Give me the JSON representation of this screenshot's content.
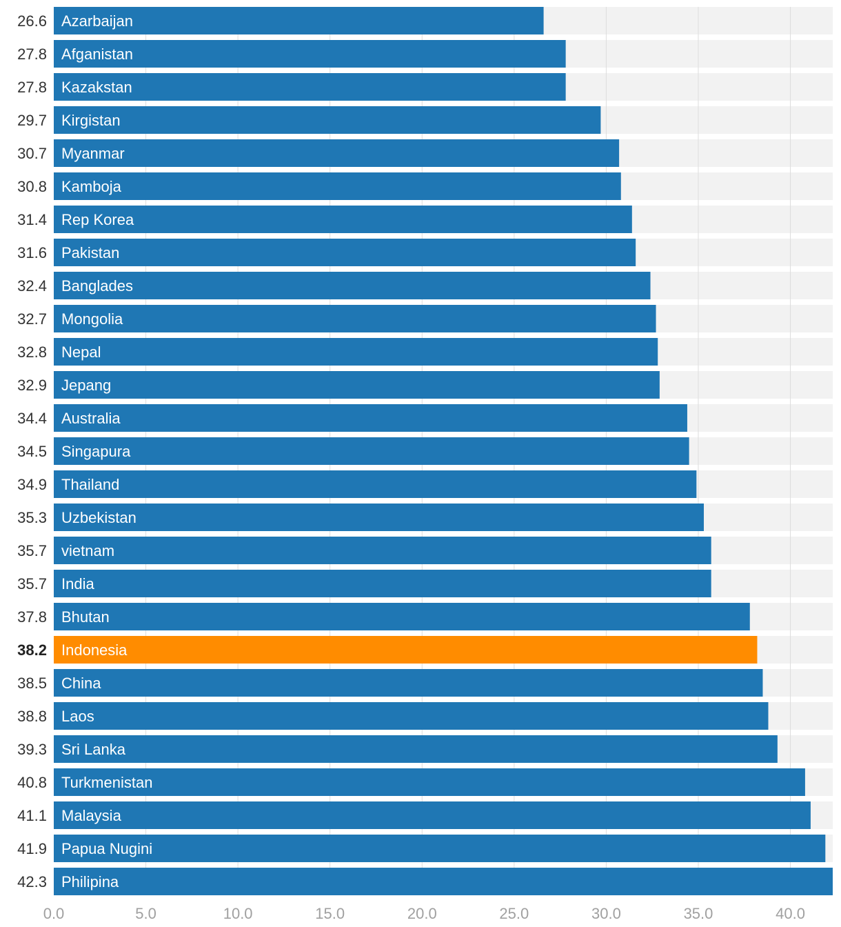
{
  "chart_data": {
    "type": "bar",
    "orientation": "horizontal",
    "categories": [
      "Azarbaijan",
      "Afganistan",
      "Kazakstan",
      "Kirgistan",
      "Myanmar",
      "Kamboja",
      "Rep Korea",
      "Pakistan",
      "Banglades",
      "Mongolia",
      "Nepal",
      "Jepang",
      "Australia",
      "Singapura",
      "Thailand",
      "Uzbekistan",
      "vietnam",
      "India",
      "Bhutan",
      "Indonesia",
      "China",
      "Laos",
      "Sri Lanka",
      "Turkmenistan",
      "Malaysia",
      "Papua Nugini",
      "Philipina"
    ],
    "values": [
      26.6,
      27.8,
      27.8,
      29.7,
      30.7,
      30.8,
      31.4,
      31.6,
      32.4,
      32.7,
      32.8,
      32.9,
      34.4,
      34.5,
      34.9,
      35.3,
      35.7,
      35.7,
      37.8,
      38.2,
      38.5,
      38.8,
      39.3,
      40.8,
      41.1,
      41.9,
      42.3
    ],
    "value_labels": [
      "26.6",
      "27.8",
      "27.8",
      "29.7",
      "30.7",
      "30.8",
      "31.4",
      "31.6",
      "32.4",
      "32.7",
      "32.8",
      "32.9",
      "34.4",
      "34.5",
      "34.9",
      "35.3",
      "35.7",
      "35.7",
      "37.8",
      "38.2",
      "38.5",
      "38.8",
      "39.3",
      "40.8",
      "41.1",
      "41.9",
      "42.3"
    ],
    "highlight": "Indonesia",
    "xlim": [
      0,
      42.3
    ],
    "xticks": [
      0,
      5,
      10,
      15,
      20,
      25,
      30,
      35,
      40
    ],
    "xtick_labels": [
      "0.0",
      "5.0",
      "10.0",
      "15.0",
      "20.0",
      "25.0",
      "30.0",
      "35.0",
      "40.0"
    ],
    "grid": true,
    "colors": {
      "bar": "#1f77b4",
      "highlight": "#ff8c00",
      "track": "#f2f2f2",
      "grid": "#dddddd"
    }
  }
}
